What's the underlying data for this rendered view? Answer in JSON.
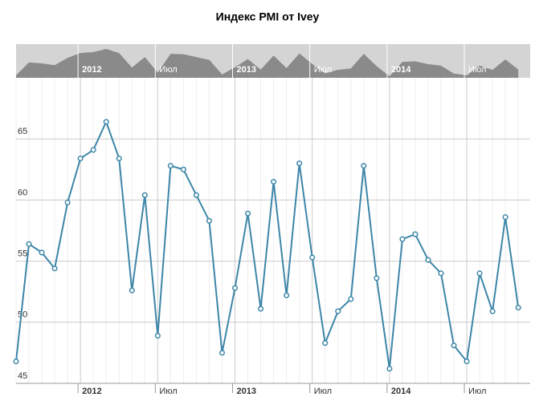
{
  "chart_data": {
    "type": "line",
    "title": "Индекс PMI от Ivey",
    "categories": [
      null,
      null,
      null,
      null,
      null,
      "2012",
      null,
      null,
      null,
      null,
      null,
      "Июл",
      null,
      null,
      null,
      null,
      null,
      "2013",
      null,
      null,
      null,
      null,
      null,
      "Июл",
      null,
      null,
      null,
      null,
      null,
      "2014",
      null,
      null,
      null,
      null,
      null,
      "Июл",
      null,
      null,
      null,
      null
    ],
    "series": [
      {
        "name": "Ivey PMI",
        "color": "#3d86a8",
        "values": [
          46.8,
          56.4,
          55.7,
          54.4,
          59.8,
          63.4,
          64.1,
          66.4,
          63.4,
          52.6,
          60.4,
          48.9,
          62.8,
          62.5,
          60.4,
          58.3,
          47.5,
          52.8,
          58.9,
          51.1,
          61.5,
          52.2,
          63.0,
          55.3,
          48.3,
          50.9,
          51.9,
          62.8,
          53.6,
          46.2,
          56.8,
          57.2,
          55.1,
          54.0,
          48.1,
          46.8,
          54.0,
          50.9,
          58.6,
          51.2
        ]
      }
    ],
    "ylim": [
      45,
      70
    ],
    "yticks": [
      45,
      50,
      55,
      60,
      65
    ],
    "grid": true
  }
}
